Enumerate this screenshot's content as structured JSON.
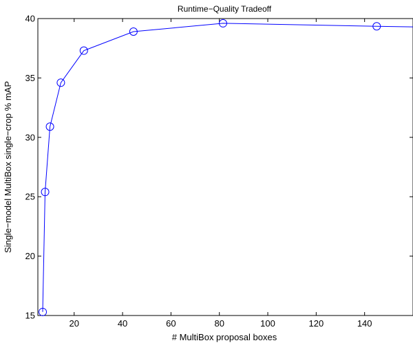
{
  "chart_data": {
    "type": "line",
    "title": "Runtime−Quality Tradeoff",
    "xlabel": "# MultiBox proposal boxes",
    "ylabel": "Single−model MultiBox single−crop % mAP",
    "xlim": [
      5,
      160
    ],
    "ylim": [
      15,
      40
    ],
    "xticks": [
      20,
      40,
      60,
      80,
      100,
      120,
      140
    ],
    "yticks": [
      15,
      20,
      25,
      30,
      35,
      40
    ],
    "grid": false,
    "marker": "circle",
    "series": [
      {
        "color": "#0000ff",
        "x": [
          7,
          8,
          10,
          14.5,
          24,
          44.5,
          81.5,
          145,
          160
        ],
        "y": [
          15.3,
          25.4,
          30.9,
          34.6,
          37.3,
          38.9,
          39.6,
          39.35,
          39.3
        ]
      }
    ]
  }
}
